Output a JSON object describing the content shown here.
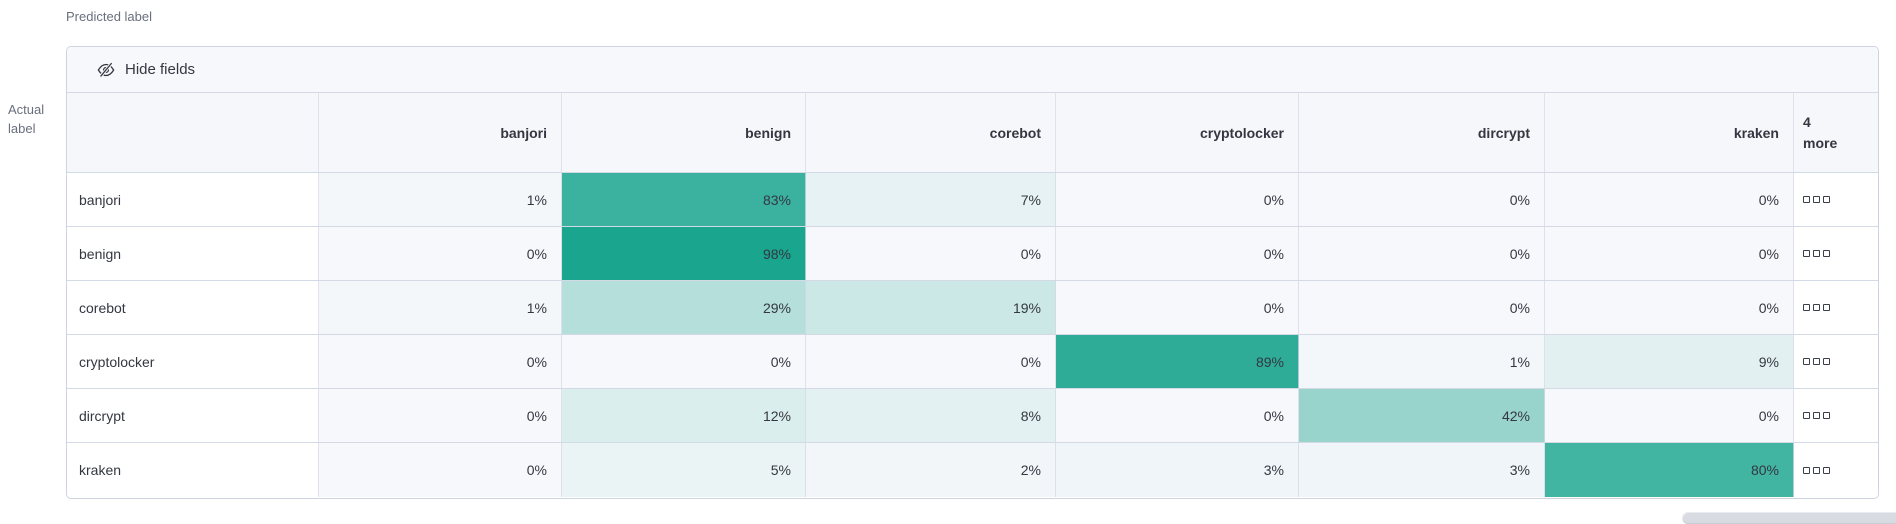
{
  "panel": {
    "predicted_axis_label": "Predicted label",
    "actual_axis_label": "Actual label",
    "toolbar": {
      "hide_fields_button": "Hide fields"
    }
  },
  "icons": {
    "hide_fields": "eye-closed-icon",
    "row_overflow": "boxes-horizontal-icon"
  },
  "colors": {
    "heat_full": "#15a38c",
    "heat_zero": "#f6f8fb",
    "header_bg": "#f5f7fa",
    "toolbar_bg": "#f7f8fc",
    "border": "#d3dae6",
    "text": "#343741",
    "subdued_text": "#69707d",
    "scrollbar_thumb": "#d8dbe1"
  },
  "chart_data": {
    "type": "heatmap",
    "x_axis_label": "Predicted label",
    "y_axis_label": "Actual label",
    "unit": "%",
    "value_range": [
      0,
      100
    ],
    "columns": [
      "banjori",
      "benign",
      "corebot",
      "cryptolocker",
      "dircrypt",
      "kraken"
    ],
    "more_columns_label": "4 more",
    "rows": [
      {
        "label": "banjori",
        "values": [
          1,
          83,
          7,
          0,
          0,
          0
        ]
      },
      {
        "label": "benign",
        "values": [
          0,
          98,
          0,
          0,
          0,
          0
        ]
      },
      {
        "label": "corebot",
        "values": [
          1,
          29,
          19,
          0,
          0,
          0
        ]
      },
      {
        "label": "cryptolocker",
        "values": [
          0,
          0,
          0,
          89,
          1,
          9
        ]
      },
      {
        "label": "dircrypt",
        "values": [
          0,
          12,
          8,
          0,
          42,
          0
        ]
      },
      {
        "label": "kraken",
        "values": [
          0,
          5,
          2,
          3,
          3,
          80
        ]
      }
    ]
  }
}
